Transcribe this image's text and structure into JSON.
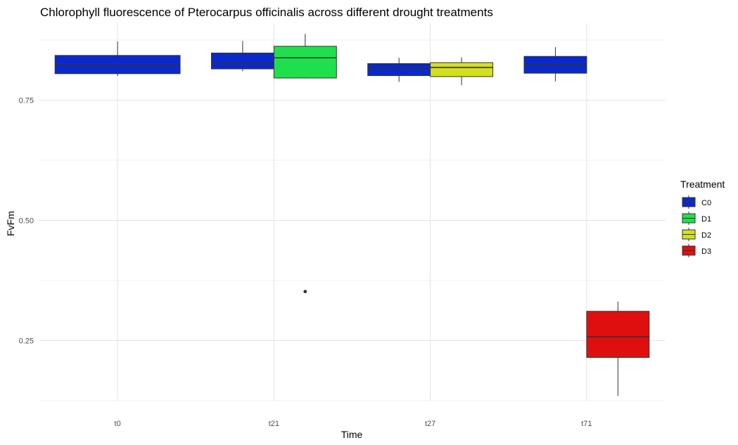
{
  "chart_data": {
    "type": "boxplot",
    "title": "Chlorophyll fluorescence of Pterocarpus officinalis across different drought treatments",
    "xlabel": "Time",
    "ylabel": "FvFm",
    "categories": [
      "t0",
      "t21",
      "t27",
      "t71"
    ],
    "y_ticks": [
      0.25,
      0.5,
      0.75
    ],
    "y_tick_labels": [
      "0.25",
      "0.50",
      "0.75"
    ],
    "ylim": [
      0.125,
      0.91
    ],
    "grid": true,
    "legend": {
      "title": "Treatment",
      "position": "right"
    },
    "series": [
      {
        "name": "C0",
        "color": "#0a29cc"
      },
      {
        "name": "D1",
        "color": "#1fe04c"
      },
      {
        "name": "D2",
        "color": "#d4e01f"
      },
      {
        "name": "D3",
        "color": "#e00f0f"
      }
    ],
    "boxes": [
      {
        "category": "t0",
        "treatment": "C0",
        "min": 0.8,
        "q1": 0.805,
        "median": 0.824,
        "q3": 0.843,
        "max": 0.872
      },
      {
        "category": "t21",
        "treatment": "C0",
        "min": 0.81,
        "q1": 0.815,
        "median": 0.826,
        "q3": 0.848,
        "max": 0.873
      },
      {
        "category": "t21",
        "treatment": "D1",
        "min": 0.795,
        "q1": 0.796,
        "median": 0.838,
        "q3": 0.862,
        "max": 0.888,
        "outliers": [
          0.352
        ]
      },
      {
        "category": "t27",
        "treatment": "C0",
        "min": 0.788,
        "q1": 0.801,
        "median": 0.817,
        "q3": 0.826,
        "max": 0.838
      },
      {
        "category": "t27",
        "treatment": "D2",
        "min": 0.781,
        "q1": 0.799,
        "median": 0.818,
        "q3": 0.828,
        "max": 0.839
      },
      {
        "category": "t71",
        "treatment": "C0",
        "min": 0.789,
        "q1": 0.806,
        "median": 0.824,
        "q3": 0.841,
        "max": 0.86
      },
      {
        "category": "t71",
        "treatment": "D3",
        "min": 0.135,
        "q1": 0.215,
        "median": 0.258,
        "q3": 0.311,
        "max": 0.331
      }
    ]
  }
}
